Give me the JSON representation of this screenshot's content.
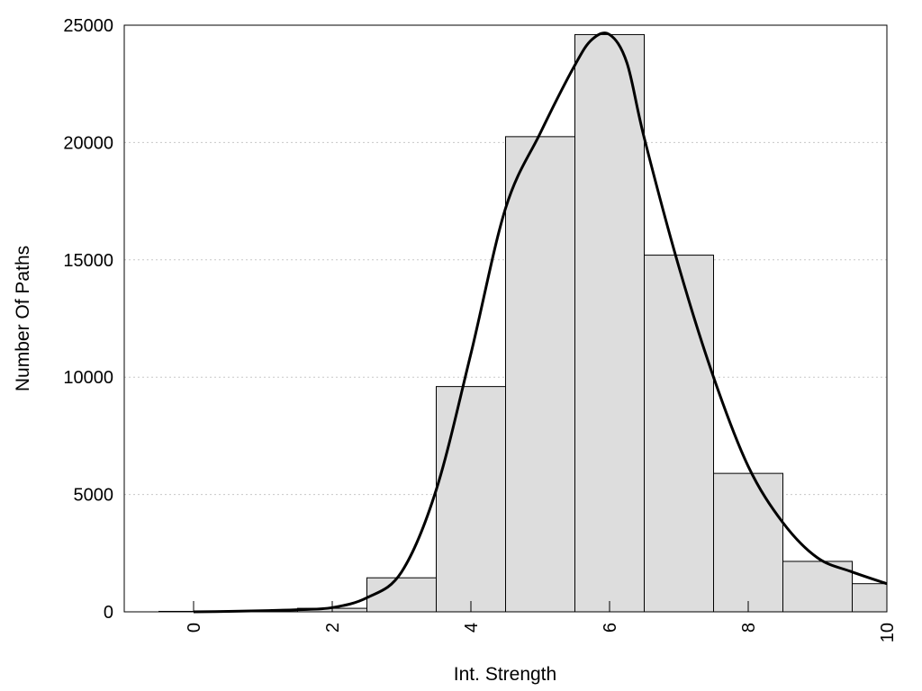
{
  "chart_data": {
    "type": "bar",
    "subtype": "histogram with density curve",
    "title": "",
    "xlabel": "Int. Strength",
    "ylabel": "Number Of Paths",
    "xlim": [
      -1,
      10
    ],
    "ylim": [
      0,
      25000
    ],
    "x_ticks": [
      0,
      2,
      4,
      6,
      8,
      10
    ],
    "x_tick_labels": [
      "0",
      "2",
      "4",
      "6",
      "8",
      "10"
    ],
    "x_tick_label_rotation": -90,
    "y_ticks": [
      0,
      5000,
      10000,
      15000,
      20000,
      25000
    ],
    "y_tick_labels": [
      "0",
      "5000",
      "10000",
      "15000",
      "20000",
      "25000"
    ],
    "grid": "horizontal dotted",
    "legend": "none",
    "bar_width": 1,
    "bars": [
      {
        "x": 0,
        "value": 20
      },
      {
        "x": 1,
        "value": 50
      },
      {
        "x": 2,
        "value": 150
      },
      {
        "x": 3,
        "value": 1450
      },
      {
        "x": 4,
        "value": 9600
      },
      {
        "x": 5,
        "value": 20250
      },
      {
        "x": 6,
        "value": 24600
      },
      {
        "x": 7,
        "value": 15200
      },
      {
        "x": 8,
        "value": 5900
      },
      {
        "x": 9,
        "value": 2150
      },
      {
        "x": 10,
        "value": 1200
      }
    ],
    "curve": {
      "x": [
        0,
        0.5,
        1,
        1.5,
        2,
        2.5,
        3,
        3.5,
        4,
        4.5,
        5,
        5.5,
        5.75,
        6,
        6.25,
        6.5,
        7,
        7.5,
        8,
        8.5,
        9,
        9.5,
        10
      ],
      "y": [
        0,
        20,
        50,
        90,
        180,
        600,
        1700,
        5200,
        11000,
        17200,
        20400,
        23300,
        24400,
        24600,
        23400,
        20200,
        14700,
        10000,
        6200,
        3800,
        2300,
        1700,
        1200
      ]
    },
    "colors": {
      "bar_fill": "#dddddd",
      "bar_stroke": "#000000",
      "curve": "#000000",
      "grid": "#c8c8c8",
      "frame": "#000000"
    }
  }
}
